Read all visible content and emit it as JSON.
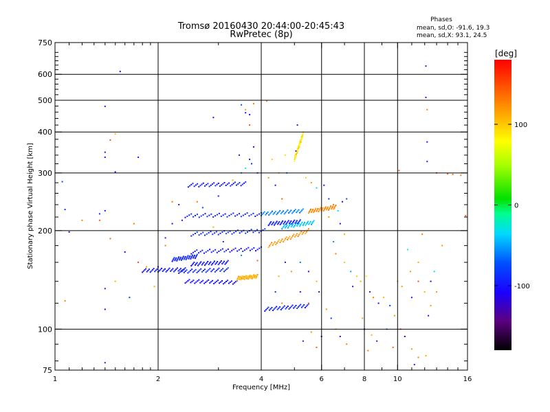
{
  "chart_data": {
    "type": "scatter",
    "title": "Tromsø 20160430 20:44:00-20:45:43",
    "subtitle": "RwPretec (8p)",
    "stats": {
      "heading": "Phases",
      "o_line": "mean, sd,O: -91.6, 19.3",
      "x_line": "mean, sd,X:  93.1, 24.5"
    },
    "xlabel": "Frequency [MHz]",
    "ylabel": "Stationary phase Virtual Height [km]",
    "x_scale": "log",
    "y_scale": "log",
    "xlim": [
      1,
      16
    ],
    "ylim": [
      75,
      750
    ],
    "x_ticks": [
      1,
      2,
      4,
      6,
      8,
      10,
      16
    ],
    "x_tick_labels": [
      "1",
      "2",
      "4",
      "6",
      "8",
      "10",
      "16"
    ],
    "x_grid": [
      2,
      4,
      6,
      8,
      10
    ],
    "y_ticks": [
      75,
      100,
      200,
      300,
      400,
      500,
      600,
      750
    ],
    "y_tick_labels": [
      "75",
      "100",
      "200",
      "300",
      "400",
      "500",
      "600",
      "750"
    ],
    "y_grid": [
      100,
      200,
      300,
      400,
      500,
      600
    ],
    "grid": true,
    "colorbar": {
      "label": "[deg]",
      "range": [
        -180,
        180
      ],
      "ticks": [
        100,
        0,
        -100
      ],
      "tick_labels": [
        "100",
        "0",
        "-100"
      ]
    },
    "traces": [
      {
        "x0": 2.4,
        "x1": 4.0,
        "h0": 222,
        "h1": 224,
        "phase": -95
      },
      {
        "x0": 4.0,
        "x1": 5.3,
        "h0": 225,
        "h1": 230,
        "phase": -60
      },
      {
        "x0": 2.45,
        "x1": 3.6,
        "h0": 275,
        "h1": 278,
        "phase": -98
      },
      {
        "x0": 2.5,
        "x1": 4.1,
        "h0": 195,
        "h1": 200,
        "phase": -90
      },
      {
        "x0": 4.2,
        "x1": 5.2,
        "h0": 210,
        "h1": 213,
        "phase": -95
      },
      {
        "x0": 2.5,
        "x1": 4.0,
        "h0": 172,
        "h1": 176,
        "phase": -100
      },
      {
        "x0": 2.5,
        "x1": 3.2,
        "h0": 158,
        "h1": 160,
        "phase": -100
      },
      {
        "x0": 2.3,
        "x1": 3.2,
        "h0": 150,
        "h1": 152,
        "phase": -92
      },
      {
        "x0": 1.8,
        "x1": 2.4,
        "h0": 151,
        "h1": 152,
        "phase": -100
      },
      {
        "x0": 2.2,
        "x1": 2.6,
        "h0": 163,
        "h1": 167,
        "phase": -95
      },
      {
        "x0": 2.4,
        "x1": 3.4,
        "h0": 140,
        "h1": 139,
        "phase": -105
      },
      {
        "x0": 3.4,
        "x1": 3.9,
        "h0": 143,
        "h1": 145,
        "phase": 110
      },
      {
        "x0": 4.1,
        "x1": 5.5,
        "h0": 115,
        "h1": 118,
        "phase": -95
      },
      {
        "x0": 4.2,
        "x1": 5.5,
        "h0": 180,
        "h1": 200,
        "phase": 120
      },
      {
        "x0": 5.5,
        "x1": 6.6,
        "h0": 229,
        "h1": 236,
        "phase": 125
      },
      {
        "x0": 4.6,
        "x1": 5.7,
        "h0": 205,
        "h1": 212,
        "phase": -40
      },
      {
        "x0": 5.0,
        "x1": 5.3,
        "h0": 330,
        "h1": 395,
        "phase": 90
      }
    ],
    "scatter_points": [
      [
        1.55,
        612,
        -105
      ],
      [
        1.4,
        479,
        -100
      ],
      [
        1.05,
        282,
        -80
      ],
      [
        1.4,
        347,
        -100
      ],
      [
        1.4,
        335,
        -100
      ],
      [
        1.45,
        378,
        150
      ],
      [
        1.5,
        395,
        110
      ],
      [
        1.75,
        335,
        -100
      ],
      [
        1.5,
        302,
        -100
      ],
      [
        1.35,
        225,
        -90
      ],
      [
        1.4,
        230,
        -100
      ],
      [
        1.35,
        215,
        140
      ],
      [
        1.07,
        232,
        -95
      ],
      [
        1.2,
        215,
        130
      ],
      [
        1.45,
        189,
        140
      ],
      [
        1.7,
        210,
        130
      ],
      [
        1.1,
        198,
        -100
      ],
      [
        1.6,
        172,
        -110
      ],
      [
        1.75,
        160,
        150
      ],
      [
        1.85,
        155,
        120
      ],
      [
        1.4,
        133,
        -100
      ],
      [
        1.5,
        140,
        110
      ],
      [
        1.65,
        125,
        -90
      ],
      [
        1.4,
        115,
        -110
      ],
      [
        1.07,
        122,
        130
      ],
      [
        1.4,
        79,
        -100
      ],
      [
        2.9,
        443,
        -100
      ],
      [
        3.5,
        484,
        -80
      ],
      [
        3.6,
        458,
        -100
      ],
      [
        3.7,
        452,
        -110
      ],
      [
        3.6,
        468,
        120
      ],
      [
        3.8,
        488,
        130
      ],
      [
        3.7,
        420,
        150
      ],
      [
        4.15,
        497,
        120
      ],
      [
        3.3,
        285,
        110
      ],
      [
        3.5,
        300,
        -60
      ],
      [
        3.7,
        330,
        -100
      ],
      [
        3.8,
        360,
        -100
      ],
      [
        3.45,
        340,
        -95
      ],
      [
        3.6,
        310,
        -20
      ],
      [
        3.75,
        320,
        -90
      ],
      [
        3.9,
        300,
        -80
      ],
      [
        4.2,
        290,
        120
      ],
      [
        4.5,
        300,
        110
      ],
      [
        4.4,
        275,
        -100
      ],
      [
        4.6,
        250,
        140
      ],
      [
        4.3,
        330,
        100
      ],
      [
        4.7,
        340,
        90
      ],
      [
        5.05,
        350,
        -90
      ],
      [
        5.1,
        420,
        -100
      ],
      [
        4.75,
        300,
        -60
      ],
      [
        5.4,
        290,
        100
      ],
      [
        5.6,
        280,
        120
      ],
      [
        5.8,
        270,
        -30
      ],
      [
        6.1,
        275,
        -100
      ],
      [
        6.3,
        250,
        -90
      ],
      [
        6.5,
        240,
        130
      ],
      [
        6.9,
        245,
        -100
      ],
      [
        7.1,
        250,
        -80
      ],
      [
        6.7,
        230,
        -30
      ],
      [
        6.3,
        220,
        120
      ],
      [
        6.8,
        210,
        -100
      ],
      [
        7.0,
        195,
        110
      ],
      [
        6.5,
        185,
        -60
      ],
      [
        6.6,
        170,
        130
      ],
      [
        7.0,
        160,
        100
      ],
      [
        7.3,
        150,
        -50
      ],
      [
        7.6,
        145,
        100
      ],
      [
        7.8,
        140,
        110
      ],
      [
        8.1,
        145,
        90
      ],
      [
        8.3,
        130,
        -100
      ],
      [
        8.5,
        125,
        130
      ],
      [
        8.8,
        120,
        -110
      ],
      [
        9.1,
        125,
        110
      ],
      [
        9.5,
        118,
        -90
      ],
      [
        9.8,
        110,
        120
      ],
      [
        7.4,
        135,
        -100
      ],
      [
        7.9,
        108,
        120
      ],
      [
        8.0,
        100,
        -110
      ],
      [
        8.4,
        96,
        110
      ],
      [
        8.7,
        92,
        -100
      ],
      [
        8.2,
        86,
        130
      ],
      [
        9.3,
        100,
        -60
      ],
      [
        9.7,
        88,
        140
      ],
      [
        10.2,
        100,
        150
      ],
      [
        10.5,
        95,
        -110
      ],
      [
        11.0,
        87,
        120
      ],
      [
        11.5,
        82,
        130
      ],
      [
        12.1,
        83,
        110
      ],
      [
        11.2,
        78,
        -100
      ],
      [
        10.1,
        305,
        150
      ],
      [
        12.1,
        636,
        -100
      ],
      [
        12.2,
        468,
        130
      ],
      [
        12.1,
        510,
        -100
      ],
      [
        12.2,
        373,
        -100
      ],
      [
        12.2,
        325,
        -95
      ],
      [
        13.0,
        300,
        150
      ],
      [
        14.0,
        298,
        140
      ],
      [
        14.5,
        297,
        130
      ],
      [
        15.3,
        295,
        130
      ],
      [
        15.8,
        222,
        150
      ],
      [
        12.5,
        140,
        -110
      ],
      [
        13.0,
        130,
        120
      ],
      [
        12.8,
        150,
        -30
      ],
      [
        11.8,
        195,
        130
      ],
      [
        11.5,
        160,
        110
      ],
      [
        10.9,
        150,
        120
      ],
      [
        10.7,
        175,
        -10
      ],
      [
        11.5,
        140,
        150
      ],
      [
        12.0,
        130,
        110
      ],
      [
        12.5,
        118,
        120
      ],
      [
        12.3,
        110,
        -100
      ],
      [
        11.0,
        125,
        -100
      ],
      [
        10.3,
        135,
        120
      ],
      [
        10.0,
        140,
        110
      ],
      [
        13.5,
        180,
        120
      ],
      [
        5.8,
        140,
        110
      ],
      [
        5.5,
        150,
        -100
      ],
      [
        5.2,
        160,
        -60
      ],
      [
        4.9,
        150,
        120
      ],
      [
        4.7,
        160,
        -100
      ],
      [
        4.5,
        145,
        110
      ],
      [
        4.4,
        130,
        -90
      ],
      [
        4.6,
        120,
        130
      ],
      [
        5.2,
        130,
        -100
      ],
      [
        5.5,
        120,
        140
      ],
      [
        5.9,
        130,
        -110
      ],
      [
        6.2,
        115,
        120
      ],
      [
        6.4,
        108,
        -90
      ],
      [
        6.6,
        100,
        110
      ],
      [
        6.8,
        95,
        -100
      ],
      [
        7.1,
        90,
        130
      ],
      [
        6.0,
        95,
        -110
      ],
      [
        5.6,
        98,
        120
      ],
      [
        5.3,
        92,
        -100
      ],
      [
        5.8,
        88,
        140
      ],
      [
        3.3,
        175,
        120
      ],
      [
        3.5,
        168,
        -60
      ],
      [
        3.9,
        162,
        140
      ],
      [
        3.1,
        185,
        -90
      ],
      [
        2.9,
        205,
        110
      ],
      [
        2.7,
        235,
        -80
      ],
      [
        2.6,
        245,
        130
      ],
      [
        3.0,
        255,
        -100
      ],
      [
        2.3,
        240,
        -100
      ],
      [
        2.2,
        245,
        130
      ],
      [
        2.35,
        215,
        -100
      ],
      [
        2.1,
        190,
        -95
      ],
      [
        2.2,
        210,
        -100
      ],
      [
        2.0,
        155,
        -100
      ],
      [
        2.1,
        180,
        130
      ],
      [
        1.95,
        135,
        110
      ]
    ]
  }
}
